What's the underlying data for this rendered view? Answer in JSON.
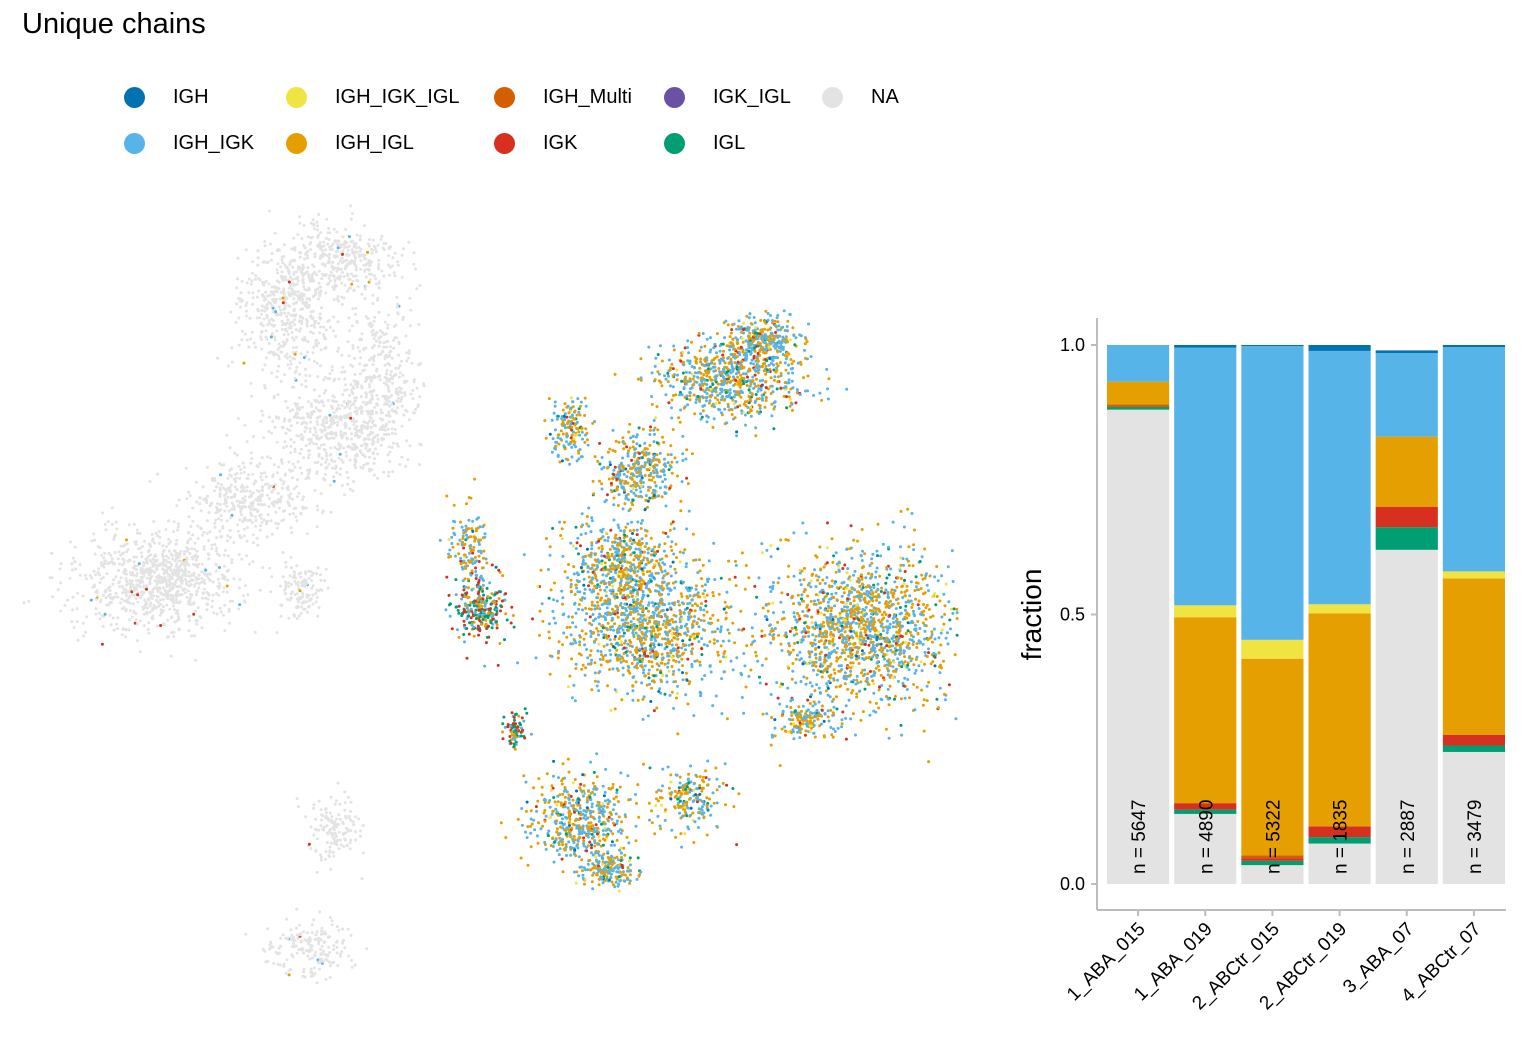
{
  "title": "Unique chains",
  "legend": [
    {
      "label": "IGH",
      "color": "#0072B2"
    },
    {
      "label": "IGH_IGK",
      "color": "#56B4E9"
    },
    {
      "label": "IGH_IGK_IGL",
      "color": "#F0E442"
    },
    {
      "label": "IGH_IGL",
      "color": "#E69F00"
    },
    {
      "label": "IGH_Multi",
      "color": "#D55E00"
    },
    {
      "label": "IGK",
      "color": "#D7301F"
    },
    {
      "label": "IGK_IGL",
      "color": "#6A51A3"
    },
    {
      "label": "IGL",
      "color": "#009E73"
    },
    {
      "label": "NA",
      "color": "#E3E3E3"
    }
  ],
  "chart_data": [
    {
      "type": "scatter",
      "title": "Unique chains",
      "xlabel": "",
      "ylabel": "",
      "clusters": [
        {
          "color_by": "NA",
          "description": "large grey cluster on left, mostly NA cells"
        },
        {
          "color_by": "mixed",
          "description": "right clusters dominated by IGH_IGK and IGH_IGL cells"
        }
      ]
    },
    {
      "type": "bar",
      "stacked": true,
      "ylabel": "fraction",
      "xlabel": "",
      "ylim": [
        0,
        1
      ],
      "yticks": [
        "0.0",
        "0.5",
        "1.0"
      ],
      "categories": [
        "1_ABA_015",
        "1_ABA_019",
        "2_ABCtr_015",
        "2_ABCtr_019",
        "3_ABA_07",
        "4_ABCtr_07"
      ],
      "n_labels": [
        "n = 5647",
        "n = 4890",
        "n = 5322",
        "n = 1835",
        "n = 2887",
        "n = 3479"
      ],
      "series": [
        {
          "name": "NA",
          "values": [
            0.88,
            0.13,
            0.035,
            0.075,
            0.62,
            0.245
          ]
        },
        {
          "name": "IGL",
          "values": [
            0.005,
            0.008,
            0.008,
            0.012,
            0.042,
            0.012
          ]
        },
        {
          "name": "IGK",
          "values": [
            0.0,
            0.012,
            0.005,
            0.02,
            0.038,
            0.02
          ]
        },
        {
          "name": "IGH_Multi",
          "values": [
            0.005,
            0.0,
            0.005,
            0.0,
            0.0,
            0.0
          ]
        },
        {
          "name": "IGH_IGL",
          "values": [
            0.042,
            0.345,
            0.365,
            0.395,
            0.13,
            0.29
          ]
        },
        {
          "name": "IGH_IGK_IGL",
          "values": [
            0.0,
            0.022,
            0.035,
            0.017,
            0.0,
            0.013
          ]
        },
        {
          "name": "IGH_IGK",
          "values": [
            0.068,
            0.478,
            0.545,
            0.47,
            0.155,
            0.416
          ]
        },
        {
          "name": "IGH",
          "values": [
            0.0,
            0.005,
            0.002,
            0.011,
            0.005,
            0.004
          ]
        }
      ]
    }
  ]
}
